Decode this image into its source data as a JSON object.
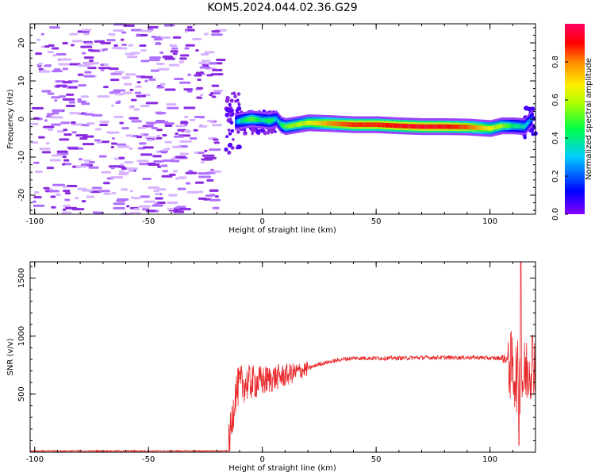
{
  "title": "KOM5.2024.044.02.36.G29",
  "chart_data": [
    {
      "type": "heatmap",
      "xlabel": "Height of straight line (km)",
      "ylabel": "Frequency (Hz)",
      "xlim": [
        -102,
        120
      ],
      "ylim": [
        -25,
        25
      ],
      "x_ticks": [
        -100,
        -50,
        0,
        50,
        100
      ],
      "y_ticks": [
        -20,
        -10,
        0,
        10,
        20
      ],
      "colorbar": {
        "label": "Normalized spectral amplitude",
        "range": [
          0,
          1
        ],
        "ticks": [
          0.0,
          0.2,
          0.4,
          0.6,
          0.8
        ],
        "colors": [
          "#8800ff",
          "#0000ff",
          "#00ccff",
          "#00ff44",
          "#aaff00",
          "#ffee00",
          "#ff8800",
          "#ff0000",
          "#ff0066"
        ]
      },
      "ridge": {
        "x": [
          -14,
          -10,
          -5,
          0,
          3,
          6,
          8,
          10,
          15,
          20,
          30,
          40,
          50,
          60,
          70,
          80,
          90,
          95,
          100,
          105,
          110,
          115,
          118,
          120
        ],
        "freq": [
          -1,
          -0.5,
          0,
          -0.3,
          -0.5,
          0,
          -1.5,
          -2,
          -1.5,
          -1,
          -1.2,
          -1.5,
          -1.5,
          -1.8,
          -2,
          -2,
          -2.1,
          -2.3,
          -2.5,
          -1.8,
          -1.8,
          -2,
          0,
          0
        ],
        "amplitude": [
          0.1,
          0.3,
          0.45,
          0.3,
          0.4,
          0.25,
          0.35,
          0.45,
          0.5,
          0.6,
          0.75,
          0.85,
          0.85,
          0.9,
          0.92,
          0.9,
          0.8,
          0.7,
          0.6,
          0.5,
          0.35,
          0.3,
          0.2,
          0.2
        ]
      },
      "noise_region_x": [
        -102,
        -20
      ],
      "noise_amplitude": 0.03
    },
    {
      "type": "line",
      "xlabel": "Height of straight line (km)",
      "ylabel": "SNR (v/v)",
      "xlim": [
        -102,
        120
      ],
      "ylim": [
        0,
        1640
      ],
      "x_ticks": [
        -100,
        -50,
        0,
        50,
        100
      ],
      "y_ticks": [
        500,
        1000,
        1500
      ],
      "color": "#e8282a",
      "envelope": {
        "x": [
          -102,
          -15,
          -14,
          -12,
          -10,
          -5,
          0,
          5,
          10,
          15,
          20,
          25,
          30,
          35,
          40,
          50,
          60,
          70,
          80,
          90,
          95,
          100,
          105,
          108,
          110,
          112,
          114,
          116,
          118,
          120
        ],
        "snr": [
          10,
          10,
          150,
          500,
          580,
          600,
          610,
          640,
          660,
          690,
          720,
          760,
          780,
          800,
          810,
          810,
          810,
          815,
          815,
          815,
          815,
          810,
          810,
          800,
          700,
          650,
          600,
          700,
          780,
          810
        ]
      }
    }
  ]
}
